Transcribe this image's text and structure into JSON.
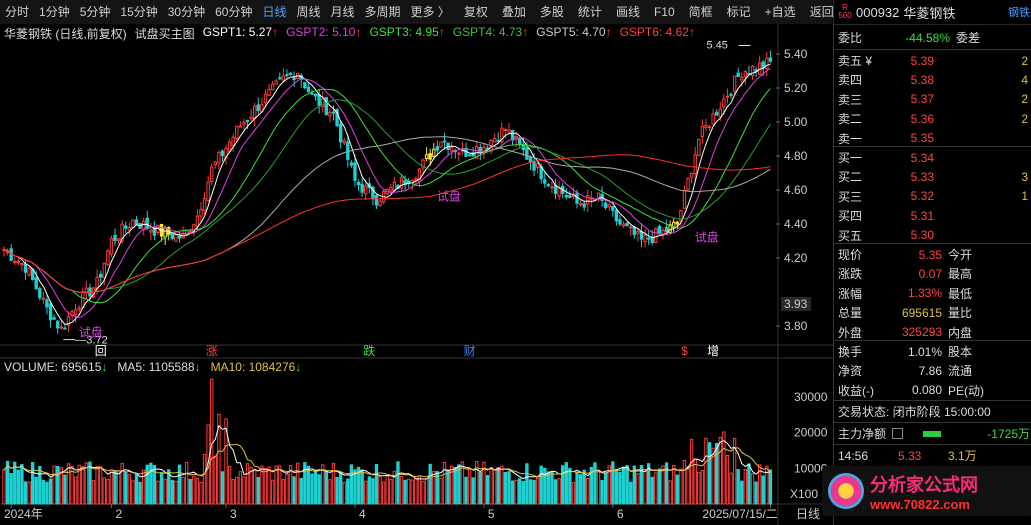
{
  "toolbar": {
    "items": [
      "分时",
      "1分钟",
      "5分钟",
      "15分钟",
      "30分钟",
      "60分钟",
      "日线",
      "周线",
      "月线",
      "多周期",
      "更多 〉"
    ],
    "active": "日线",
    "right_items": [
      "复权",
      "叠加",
      "多股",
      "统计",
      "画线",
      "F10",
      "简框",
      "标记",
      "+自选",
      "返回"
    ]
  },
  "legend": {
    "stock": "华菱钢铁 (日线,前复权)",
    "indicator": "试盘买主图",
    "gspt": [
      {
        "label": "GSPT1: 5.27",
        "arrow": "↑",
        "color": "#ffffff"
      },
      {
        "label": "GSPT2: 5.10",
        "arrow": "↑",
        "color": "#e040e0"
      },
      {
        "label": "GSPT3: 4.95",
        "arrow": "↑",
        "color": "#40e040"
      },
      {
        "label": "GSPT4: 4.73",
        "arrow": "↑",
        "color": "#40c040"
      },
      {
        "label": "GSPT5: 4.70",
        "arrow": "↑",
        "color": "#cccccc"
      },
      {
        "label": "GSPT6: 4.62",
        "arrow": "↑",
        "color": "#ff4040"
      }
    ]
  },
  "price_axis": {
    "labels": [
      "5.40",
      "5.20",
      "5.00",
      "4.80",
      "4.60",
      "4.40",
      "4.20",
      "3.93",
      "3.80"
    ],
    "current": "3.93"
  },
  "annotations": {
    "high": "5.45",
    "low": "3.72",
    "test_label": "试盘"
  },
  "event_marks": [
    {
      "text": "回",
      "color": "#ffffff"
    },
    {
      "text": "涨",
      "color": "#ff4040"
    },
    {
      "text": "跌",
      "color": "#40e040"
    },
    {
      "text": "财",
      "color": "#4080ff"
    },
    {
      "text": "$",
      "color": "#ff4040"
    },
    {
      "text": "增",
      "color": "#ffffff"
    }
  ],
  "volume_legend": {
    "vol": "VOLUME: 695615",
    "ma5": "MA5: 1105588",
    "ma10": "MA10: 1084276",
    "arrow": "↓"
  },
  "volume_axis": {
    "labels": [
      "30000",
      "20000",
      "10000"
    ],
    "unit": "X100"
  },
  "date_axis": {
    "labels": [
      "2024年",
      "2",
      "3",
      "4",
      "5",
      "6",
      "2025/07/15/二"
    ],
    "period": "日线"
  },
  "quote": {
    "badge_top": "R",
    "badge_bottom": "500",
    "code": "000932",
    "name": "华菱钢铁",
    "tag": "钢铁",
    "weibi_label": "委比",
    "weibi_value": "-44.58%",
    "weicha_label": "委差",
    "asks": [
      {
        "label": "卖五 ¥",
        "price": "5.39",
        "vol": "2"
      },
      {
        "label": "卖四",
        "price": "5.38",
        "vol": "4"
      },
      {
        "label": "卖三",
        "price": "5.37",
        "vol": "2"
      },
      {
        "label": "卖二",
        "price": "5.36",
        "vol": "2"
      },
      {
        "label": "卖一",
        "price": "5.35",
        "vol": ""
      }
    ],
    "bids": [
      {
        "label": "买一",
        "price": "5.34",
        "vol": ""
      },
      {
        "label": "买二",
        "price": "5.33",
        "vol": "3"
      },
      {
        "label": "买三",
        "price": "5.32",
        "vol": "1"
      },
      {
        "label": "买四",
        "price": "5.31",
        "vol": ""
      },
      {
        "label": "买五",
        "price": "5.30",
        "vol": ""
      }
    ],
    "stats": [
      {
        "l1": "现价",
        "v1": "5.35",
        "l2": "今开",
        "c": "red"
      },
      {
        "l1": "涨跌",
        "v1": "0.07",
        "l2": "最高",
        "c": "red"
      },
      {
        "l1": "涨幅",
        "v1": "1.33%",
        "l2": "最低",
        "c": "red"
      },
      {
        "l1": "总量",
        "v1": "695615",
        "l2": "量比",
        "c": "yellow"
      },
      {
        "l1": "外盘",
        "v1": "325293",
        "l2": "内盘",
        "c": "red"
      }
    ],
    "stats2": [
      {
        "l1": "换手",
        "v1": "1.01%",
        "l2": "股本"
      },
      {
        "l1": "净资",
        "v1": "7.86",
        "l2": "流通"
      },
      {
        "l1": "收益(-)",
        "v1": "0.080",
        "l2": "PE(动)"
      }
    ],
    "status": "交易状态: 闭市阶段 15:00:00",
    "main_flow_label": "主力净额",
    "main_flow_value": "-1725万",
    "ticks": [
      {
        "time": "14:56",
        "price": "5.33",
        "vol": "3.1万"
      }
    ]
  },
  "watermark": {
    "cn": "分析家公式网",
    "url": "www.70822.com"
  }
}
